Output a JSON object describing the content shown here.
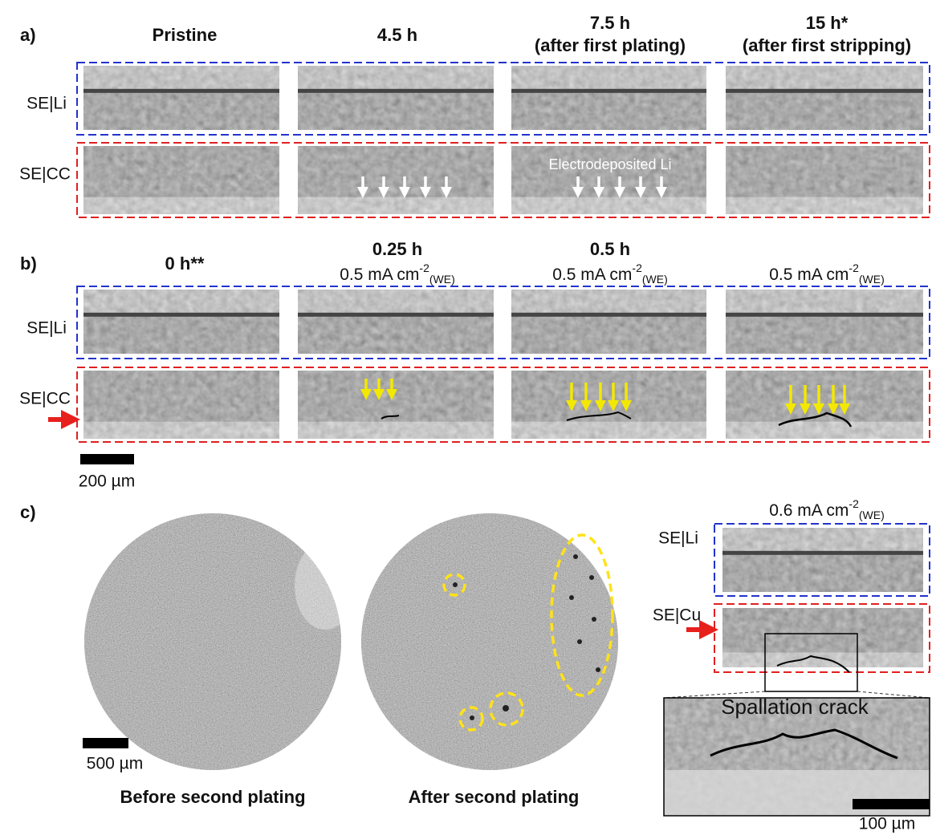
{
  "panel_a": {
    "label": "a)",
    "columns": [
      {
        "title": "Pristine"
      },
      {
        "title": "4.5 h"
      },
      {
        "title": "7.5 h",
        "subtitle": "(after first plating)"
      },
      {
        "title": "15 h*",
        "subtitle": "(after first stripping)"
      }
    ],
    "rows": [
      "SE|Li",
      "SE|CC"
    ],
    "annotation": "Electrodeposited Li"
  },
  "panel_b": {
    "label": "b)",
    "columns": [
      {
        "title": "0 h**"
      },
      {
        "title": "0.25 h",
        "current": {
          "text": "0.5 mA cm",
          "sup": "-2",
          "sub": "(WE)"
        }
      },
      {
        "title": "0.5 h",
        "current": {
          "text": "0.5 mA cm",
          "sup": "-2",
          "sub": "(WE)"
        }
      },
      {
        "current": {
          "text": "0.5 mA cm",
          "sup": "-2",
          "sub": "(WE)"
        }
      }
    ],
    "rows": [
      "SE|Li",
      "SE|CC"
    ],
    "scale_bar": "200 µm"
  },
  "panel_c": {
    "label": "c)",
    "images": [
      "Before second plating",
      "After second plating"
    ],
    "scale_bar": "500 µm",
    "current": {
      "text": "0.6 mA cm",
      "sup": "-2",
      "sub": "(WE)"
    },
    "rows": [
      "SE|Li",
      "SE|Cu"
    ],
    "inset_title": "Spallation crack",
    "inset_scale_bar": "100 µm"
  }
}
